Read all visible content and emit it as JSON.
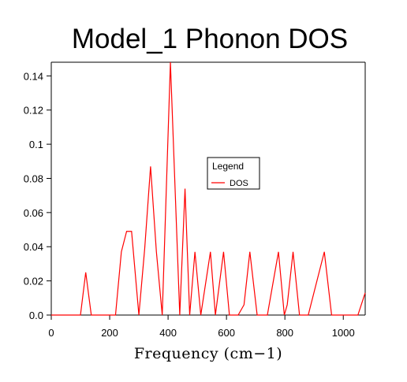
{
  "chart_data": {
    "type": "line",
    "title": "Model_1 Phonon DOS",
    "xlabel": "Frequency (cm−1)",
    "ylabel": "",
    "xlim": [
      0,
      1075
    ],
    "ylim": [
      0,
      0.148
    ],
    "xticks": [
      0,
      200,
      400,
      600,
      800,
      1000
    ],
    "yticks": [
      0.0,
      0.02,
      0.04,
      0.06,
      0.08,
      0.1,
      0.12,
      0.14
    ],
    "xtick_labels": [
      "0",
      "200",
      "400",
      "600",
      "800",
      "1000"
    ],
    "ytick_labels": [
      "0.0",
      "0.02",
      "0.04",
      "0.06",
      "0.08",
      "0.1",
      "0.12",
      "0.14"
    ],
    "grid": false,
    "legend": {
      "title": "Legend",
      "placement": "center-right",
      "entries": [
        "DOS"
      ]
    },
    "series": [
      {
        "name": "DOS",
        "color": "#ff0000",
        "x": [
          0,
          100,
          118,
          137,
          220,
          240,
          258,
          275,
          300,
          320,
          340,
          360,
          380,
          408,
          440,
          458,
          474,
          492,
          512,
          545,
          562,
          590,
          610,
          640,
          660,
          680,
          705,
          740,
          778,
          798,
          808,
          828,
          850,
          880,
          935,
          960,
          1050,
          1075
        ],
        "y": [
          0,
          0,
          0.025,
          0,
          0,
          0.037,
          0.049,
          0.049,
          0,
          0.039,
          0.087,
          0.037,
          0,
          0.148,
          0,
          0.074,
          0,
          0.037,
          0,
          0.037,
          0,
          0.037,
          0,
          0,
          0.006,
          0.037,
          0,
          0,
          0.037,
          0,
          0.006,
          0.037,
          0,
          0,
          0.037,
          0,
          0,
          0.013
        ]
      }
    ]
  }
}
